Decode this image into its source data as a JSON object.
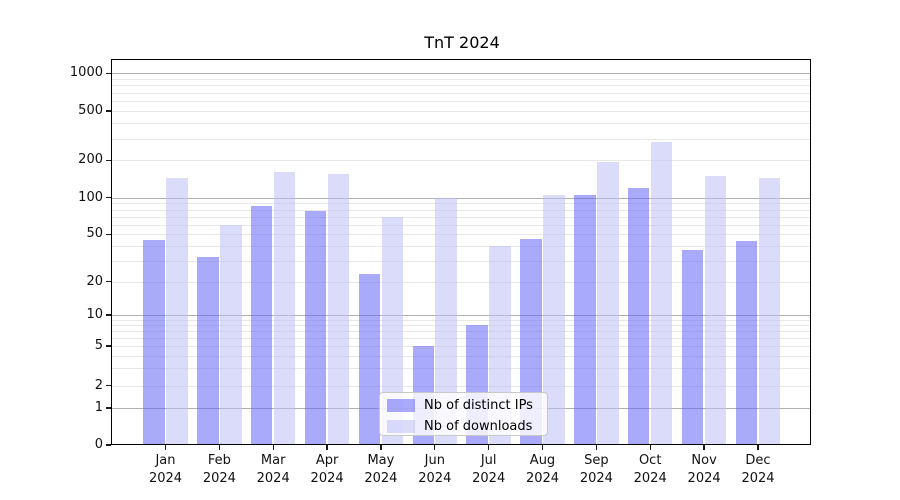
{
  "title": "TnT 2024",
  "chart_data": {
    "type": "bar",
    "title": "TnT 2024",
    "categories": [
      "Jan 2024",
      "Feb 2024",
      "Mar 2024",
      "Apr 2024",
      "May 2024",
      "Jun 2024",
      "Jul 2024",
      "Aug 2024",
      "Sep 2024",
      "Oct 2024",
      "Nov 2024",
      "Dec 2024"
    ],
    "series": [
      {
        "name": "Nb of distinct IPs",
        "color": "rgba(100,100,245,0.55)",
        "values": [
          45,
          32,
          85,
          78,
          23,
          5,
          8,
          46,
          105,
          120,
          37,
          44
        ]
      },
      {
        "name": "Nb of downloads",
        "color": "rgba(190,190,246,0.55)",
        "values": [
          145,
          60,
          160,
          155,
          70,
          100,
          40,
          105,
          195,
          280,
          150,
          145
        ]
      }
    ],
    "ylabel": "",
    "xlabel": "",
    "yscale": "symlog",
    "yticks": [
      0,
      1,
      2,
      5,
      10,
      20,
      50,
      100,
      200,
      500,
      1000
    ],
    "ylim": [
      0,
      1300
    ],
    "grid": "horizontal major+minor",
    "legend_position": "lower center",
    "colors": {
      "bar_dark": "rgba(100,100,245,0.55)",
      "bar_light": "rgba(190,190,246,0.55)",
      "grid_major": "#b0b0b0",
      "grid_minor": "#e8e8e8",
      "background": "#ffffff"
    }
  },
  "legend": {
    "items": [
      {
        "label": "Nb of distinct IPs"
      },
      {
        "label": "Nb of downloads"
      }
    ]
  }
}
